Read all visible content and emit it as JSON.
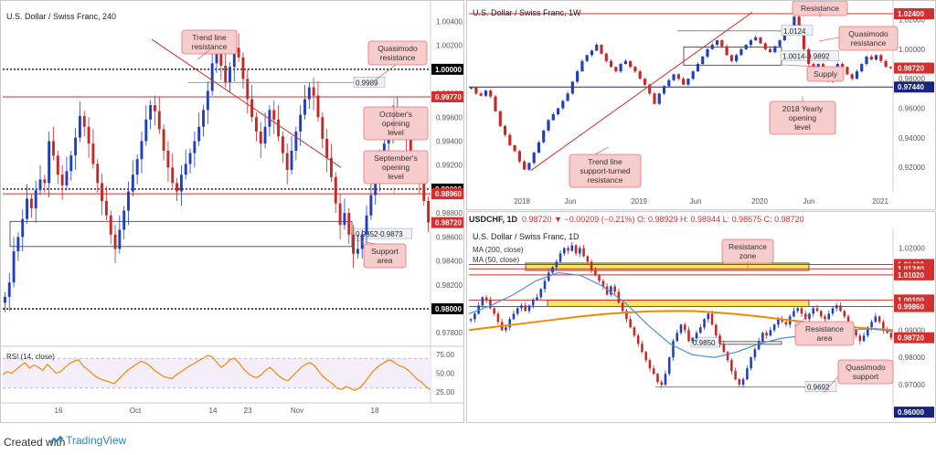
{
  "colors": {
    "bull": "#1f3fbf",
    "bear": "#c62828",
    "resistance": "#d32f2f",
    "support_blue": "#1a237e",
    "yearly": "#1a237e",
    "annotation_fill": "#f6cccc",
    "annotation_stroke": "#e57373",
    "zone_yellow": "#f7e463",
    "rsi": "#ef8a00",
    "ma200": "#ef8a00",
    "ma50": "#4a90d9",
    "price_tag": "#d32f2f"
  },
  "footer": {
    "created_with": "Created with",
    "brand": "TradingView"
  },
  "chart_data": [
    {
      "id": "left",
      "type": "candlestick",
      "title": "U.S. Dollar / Swiss Franc, 240",
      "xlabel": "",
      "ylabel": "",
      "x_ticks": [
        "16",
        "Oct",
        "14",
        "23",
        "Nov",
        "18"
      ],
      "y_ticks": [
        "1.00400",
        "1.00200",
        "1.00000",
        "0.99800",
        "0.99600",
        "0.99400",
        "0.99200",
        "0.99000",
        "0.98800",
        "0.98600",
        "0.98400",
        "0.98200",
        "0.98000",
        "0.97800"
      ],
      "ylim": [
        0.9771,
        1.0051
      ],
      "price_tags": [
        {
          "label": "1.00000",
          "value": 1.0,
          "color": "#000000"
        },
        {
          "label": "0.99770",
          "value": 0.9977,
          "color": "#d32f2f"
        },
        {
          "label": "0.99000",
          "value": 0.99,
          "color": "#000000"
        },
        {
          "label": "0.98960",
          "value": 0.9896,
          "color": "#d32f2f"
        },
        {
          "label": "0.98720",
          "value": 0.9872,
          "color": "#d32f2f"
        },
        {
          "label": "0.98000",
          "value": 0.98,
          "color": "#000000"
        }
      ],
      "levels": [
        {
          "value": 1.0,
          "style": "dotted"
        },
        {
          "value": 0.9977,
          "style": "solid-red"
        },
        {
          "value": 0.99,
          "style": "dotted"
        },
        {
          "value": 0.9896,
          "style": "solid-red"
        },
        {
          "value": 0.98,
          "style": "dotted"
        }
      ],
      "zones": [
        {
          "label": "0.9852-0.9873",
          "top": 0.9873,
          "bottom": 0.9852
        }
      ],
      "marker": {
        "label": "0.9989",
        "value": 0.9989
      },
      "annotations": [
        {
          "label": "Trend line resistance"
        },
        {
          "label": "Quasimodo resistance"
        },
        {
          "label": "October's opening level"
        },
        {
          "label": "September's opening level"
        },
        {
          "label": "Support area"
        }
      ],
      "trendline": {
        "from": 1.0025,
        "to": 0.9918
      },
      "candles": [
        0.981,
        0.9822,
        0.9848,
        0.986,
        0.9875,
        0.9892,
        0.9884,
        0.9899,
        0.9908,
        0.9905,
        0.994,
        0.9928,
        0.9912,
        0.9903,
        0.9915,
        0.9928,
        0.9943,
        0.9961,
        0.9952,
        0.9938,
        0.9921,
        0.9905,
        0.989,
        0.9878,
        0.9862,
        0.985,
        0.9866,
        0.9882,
        0.9898,
        0.9912,
        0.9925,
        0.994,
        0.9958,
        0.997,
        0.9965,
        0.995,
        0.9932,
        0.9918,
        0.9905,
        0.9898,
        0.9912,
        0.9921,
        0.993,
        0.994,
        0.9952,
        0.9966,
        0.9982,
        1.0005,
        1.0018,
        1.0003,
        0.9989,
        1.0002,
        1.0018,
        1.001,
        0.9992,
        0.9975,
        0.996,
        0.9948,
        0.9938,
        0.9952,
        0.9966,
        0.9958,
        0.9944,
        0.993,
        0.9916,
        0.9932,
        0.9948,
        0.9962,
        0.9975,
        0.9985,
        0.9978,
        0.996,
        0.9942,
        0.9926,
        0.991,
        0.9888,
        0.987,
        0.988,
        0.9862,
        0.9846,
        0.985,
        0.9862,
        0.9878,
        0.9895,
        0.991,
        0.9925,
        0.9938,
        0.995,
        0.9962,
        0.9965,
        0.9958,
        0.9942,
        0.9926,
        0.992,
        0.9908,
        0.989,
        0.9872
      ],
      "rsi": {
        "label": "RSI (14, close)",
        "ticks": [
          "75.00",
          "50.00",
          "25.00"
        ],
        "ylim": [
          20,
          80
        ],
        "values": [
          48,
          52,
          50,
          55,
          60,
          64,
          57,
          61,
          58,
          54,
          62,
          56,
          50,
          52,
          58,
          63,
          66,
          68,
          60,
          55,
          50,
          45,
          42,
          40,
          38,
          36,
          42,
          48,
          54,
          58,
          62,
          66,
          64,
          60,
          54,
          50,
          46,
          44,
          43,
          48,
          52,
          56,
          60,
          63,
          67,
          70,
          74,
          72,
          65,
          58,
          62,
          68,
          70,
          64,
          56,
          50,
          46,
          44,
          48,
          54,
          58,
          52,
          46,
          42,
          40,
          46,
          52,
          58,
          62,
          64,
          60,
          52,
          45,
          40,
          36,
          30,
          28,
          32,
          30,
          27,
          30,
          36,
          44,
          52,
          58,
          62,
          66,
          68,
          64,
          60,
          58,
          54,
          48,
          42,
          38,
          32,
          28
        ]
      }
    },
    {
      "id": "top-right",
      "type": "candlestick",
      "title": "U.S. Dollar / Swiss Franc, 1W",
      "xlabel": "",
      "ylabel": "",
      "x_ticks": [
        "2018",
        "Jun",
        "2019",
        "Jun",
        "2020",
        "Jun",
        "2021"
      ],
      "y_ticks": [
        "1.02000",
        "1.00000",
        "0.98000",
        "0.96000",
        "0.94000",
        "0.92000"
      ],
      "ylim": [
        0.909,
        1.0265
      ],
      "price_tags": [
        {
          "label": "1.02400",
          "value": 1.024,
          "color": "#d32f2f"
        },
        {
          "label": "0.98720",
          "value": 0.9872,
          "color": "#d32f2f"
        },
        {
          "label": "0.97440",
          "value": 0.9744,
          "color": "#1a237e"
        }
      ],
      "levels": [
        {
          "value": 1.024,
          "style": "solid-red"
        },
        {
          "value": 0.9744,
          "style": "solid-navy"
        }
      ],
      "zones": [
        {
          "label": "1.0014-0.9892",
          "top": 1.0014,
          "bottom": 0.9892
        }
      ],
      "marker": {
        "label": "1.0124",
        "value": 1.0124
      },
      "annotations": [
        {
          "label": "Resistance"
        },
        {
          "label": "Quasimodo resistance"
        },
        {
          "label": "Supply"
        },
        {
          "label": "2018 Yearly opening level"
        },
        {
          "label": "Trend line support-turned resistance"
        }
      ],
      "trendline": {
        "from": 0.918,
        "to": 1.025
      },
      "candles": [
        0.974,
        0.97,
        0.9685,
        0.972,
        0.968,
        0.958,
        0.948,
        0.942,
        0.935,
        0.931,
        0.924,
        0.9185,
        0.923,
        0.93,
        0.937,
        0.945,
        0.952,
        0.956,
        0.96,
        0.965,
        0.97,
        0.978,
        0.985,
        0.992,
        0.996,
        0.999,
        1.003,
        0.997,
        0.992,
        0.988,
        0.985,
        0.99,
        0.992,
        0.988,
        0.985,
        0.98,
        0.976,
        0.97,
        0.963,
        0.97,
        0.975,
        0.979,
        0.983,
        0.98,
        0.976,
        0.98,
        0.985,
        0.99,
        0.995,
        1.0,
        1.003,
        1.006,
        1.002,
        0.996,
        0.992,
        0.996,
        1.0,
        1.003,
        1.006,
        1.008,
        1.004,
        1.0,
        0.998,
        1.002,
        1.006,
        1.011,
        1.016,
        1.022,
        1.015,
        1.0,
        0.99,
        0.98,
        0.99,
        0.985,
        0.978,
        0.985,
        0.99,
        0.988,
        0.983,
        0.98,
        0.985,
        0.99,
        0.995,
        0.993,
        0.996,
        0.992,
        0.988,
        0.9872
      ]
    },
    {
      "id": "bottom-right",
      "type": "candlestick",
      "title": "U.S. Dollar / Swiss Franc, 1D",
      "ohlc_symbol": "USDCHF, 1D",
      "ohlc_values": "0.98720 ▼ −0.00209 (−0.21%) O: 0.98929 H: 0.98944 L: 0.98675 C: 0.98720",
      "xlabel": "",
      "ylabel": "",
      "x_ticks": [
        "Mar",
        "May",
        "Jul",
        "Sep",
        "Nov",
        "2020"
      ],
      "y_ticks": [
        "1.02000",
        "1.01000",
        "1.00000",
        "0.99000",
        "0.98000",
        "0.97000",
        "0.96000"
      ],
      "ylim": [
        0.9597,
        1.0225
      ],
      "indicators": [
        "MA (200, close)",
        "MA (50, close)"
      ],
      "price_tags": [
        {
          "label": "1.01400",
          "value": 1.014,
          "color": "#d32f2f"
        },
        {
          "label": "1.01240",
          "value": 1.0124,
          "color": "#d32f2f"
        },
        {
          "label": "1.01020",
          "value": 1.0102,
          "color": "#d32f2f"
        },
        {
          "label": "1.00100",
          "value": 1.001,
          "color": "#d32f2f"
        },
        {
          "label": "0.99860",
          "value": 0.9986,
          "color": "#d32f2f"
        },
        {
          "label": "0.98720",
          "value": 0.9872,
          "color": "#d32f2f"
        },
        {
          "label": "0.96000",
          "value": 0.96,
          "color": "#1a237e"
        }
      ],
      "levels": [
        {
          "value": 1.014,
          "style": "solid-red"
        },
        {
          "value": 1.0124,
          "style": "solid-red"
        },
        {
          "value": 1.0102,
          "style": "solid-red"
        },
        {
          "value": 1.001,
          "style": "solid-red"
        },
        {
          "value": 0.9986,
          "style": "solid-red"
        }
      ],
      "zones": [
        {
          "label": "Resistance zone",
          "top": 1.0145,
          "bottom": 1.0118,
          "fill": "yellow"
        },
        {
          "label": "Resistance area",
          "top": 1.001,
          "bottom": 0.9986,
          "fill": "yellow"
        },
        {
          "label": "0.9850",
          "top": 0.9858,
          "bottom": 0.985,
          "fill": "none"
        }
      ],
      "marker": {
        "label": "0.9692",
        "value": 0.9692
      },
      "annotations": [
        {
          "label": "Resistance zone"
        },
        {
          "label": "Resistance area"
        },
        {
          "label": "Quasimodo support"
        }
      ],
      "candles": [
        0.994,
        0.996,
        0.999,
        1.002,
        1.001,
        0.998,
        0.996,
        0.993,
        0.99,
        0.991,
        0.994,
        0.996,
        0.998,
        0.999,
        0.997,
        0.999,
        1.001,
        1.002,
        1.005,
        1.008,
        1.011,
        1.013,
        1.015,
        1.018,
        1.02,
        1.019,
        1.021,
        1.018,
        1.02,
        1.017,
        1.015,
        1.012,
        1.01,
        1.008,
        1.006,
        1.003,
        1.006,
        1.004,
        1.0,
        0.997,
        0.994,
        0.991,
        0.988,
        0.985,
        0.982,
        0.979,
        0.976,
        0.974,
        0.971,
        0.97,
        0.974,
        0.98,
        0.986,
        0.989,
        0.992,
        0.99,
        0.986,
        0.987,
        0.989,
        0.991,
        0.994,
        0.996,
        0.992,
        0.988,
        0.985,
        0.982,
        0.979,
        0.975,
        0.972,
        0.97,
        0.972,
        0.976,
        0.98,
        0.983,
        0.986,
        0.989,
        0.988,
        0.99,
        0.992,
        0.994,
        0.993,
        0.992,
        0.995,
        0.997,
        0.998,
        0.996,
        0.994,
        0.996,
        0.998,
        0.997,
        0.995,
        0.994,
        0.996,
        0.998,
        0.999,
        0.997,
        0.995,
        0.992,
        0.99,
        0.988,
        0.986,
        0.988,
        0.991,
        0.993,
        0.995,
        0.993,
        0.99,
        0.989,
        0.9872
      ],
      "ma200": [
        0.99,
        0.991,
        0.992,
        0.993,
        0.994,
        0.995,
        0.9958,
        0.9964,
        0.9968,
        0.997,
        0.997,
        0.9965,
        0.9958,
        0.995,
        0.994,
        0.993,
        0.992,
        0.9912,
        0.9905,
        0.99
      ],
      "ma50": [
        0.996,
        0.999,
        1.003,
        1.008,
        1.011,
        1.01,
        1.006,
        1.0,
        0.992,
        0.985,
        0.981,
        0.98,
        0.982,
        0.985,
        0.987,
        0.988,
        0.989,
        0.99,
        0.9905,
        0.9895
      ]
    }
  ]
}
